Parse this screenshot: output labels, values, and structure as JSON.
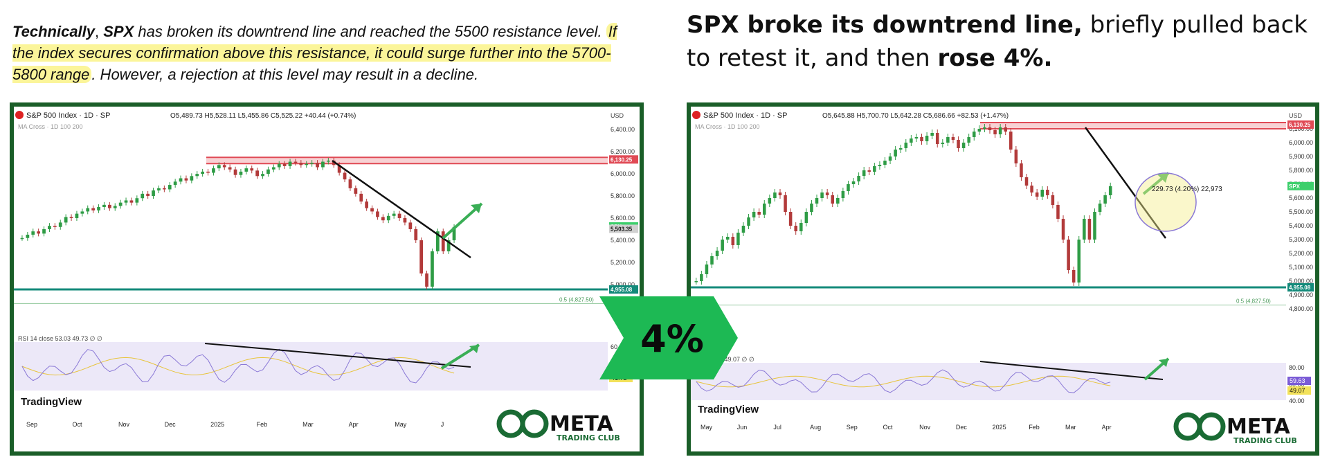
{
  "captions": {
    "left": {
      "w1": "Technically",
      "w2": ", ",
      "w3": "SPX",
      "w4": " has broken its downtrend line and reached the 5500 resistance level. ",
      "w5": "If the index secures confirmation above this resistance, it could surge further into the 5700-5800 range",
      "w6": ". However, a rejection at this level may result in a decline."
    },
    "right": {
      "bold1": "SPX broke its downtrend line,",
      "normal1": " briefly pulled back to retest it, and then ",
      "bold2": "rose 4%."
    }
  },
  "badge": {
    "label": "4%",
    "color": "#1db954"
  },
  "brand": {
    "logo_main": "META",
    "logo_sub": "TRADING CLUB",
    "watermark": "TradingView"
  },
  "colors": {
    "panel_border": "#1a5e28",
    "bull": "#2e9c45",
    "bear": "#b23a3a",
    "resistance": "#e04a55",
    "support": "#138a7a",
    "rsi_band": "#ece8f8",
    "rsi_line": "#8a78d6",
    "rsi_ma": "#e8c43c",
    "arrow": "#3aae56"
  },
  "chart_data": [
    {
      "type": "candlestick",
      "panel": "left",
      "symbol": "S&P 500 Index · 1D · SP",
      "ohlc_header": "O5,489.73 H5,528.11 L5,455.86 C5,525.22 +40.44 (+0.74%)",
      "indicator_label": "MA Cross · 1D 100 200",
      "currency": "USD",
      "y_ticks": [
        "6,400.00",
        "6,200.00",
        "6,000.00",
        "5,800.00",
        "5,600.00",
        "5,400.00",
        "5,200.00",
        "5,000.00"
      ],
      "x_ticks": [
        "Sep",
        "Oct",
        "Nov",
        "Dec",
        "2025",
        "Feb",
        "Mar",
        "Apr",
        "May",
        "J"
      ],
      "price_tags": [
        {
          "label": "6,130.25",
          "value": 6130.25,
          "color": "#e04a55"
        },
        {
          "label": "SPX",
          "value": 5525,
          "color": "#3ccf6b"
        },
        {
          "label": "5,503.35",
          "value": 5503.35,
          "color": "#d0d0d0"
        },
        {
          "label": "4,955.08",
          "value": 4955.08,
          "color": "#138a7a"
        }
      ],
      "fib_label": "0.5 (4,827.50)",
      "fib_value": 4827.5,
      "resistance": 6130.25,
      "support": 4955.08,
      "closes": [
        5420,
        5450,
        5480,
        5460,
        5500,
        5530,
        5520,
        5560,
        5610,
        5600,
        5640,
        5660,
        5690,
        5670,
        5700,
        5720,
        5690,
        5710,
        5740,
        5760,
        5740,
        5780,
        5820,
        5800,
        5850,
        5870,
        5860,
        5900,
        5930,
        5960,
        5940,
        5980,
        6000,
        6020,
        6010,
        6050,
        6080,
        6060,
        6040,
        5990,
        6020,
        6050,
        6030,
        5980,
        6000,
        6040,
        6060,
        6090,
        6070,
        6110,
        6100,
        6080,
        6090,
        6100,
        6060,
        6110,
        6120,
        6080,
        6010,
        5950,
        5870,
        5820,
        5750,
        5690,
        5660,
        5610,
        5580,
        5620,
        5640,
        5600,
        5560,
        5500,
        5400,
        5100,
        4980,
        5300,
        5480,
        5300,
        5400,
        5520
      ],
      "rsi": {
        "label": "RSI 14 close",
        "values_label": "53.03 49.73 ∅ ∅",
        "y_ticks": [
          "60"
        ],
        "value_tag": "41.72"
      }
    },
    {
      "type": "candlestick",
      "panel": "right",
      "symbol": "S&P 500 Index · 1D · SP",
      "ohlc_header": "O5,645.88 H5,700.70 L5,642.28 C5,686.66 +82.53 (+1.47%)",
      "indicator_label": "MA Cross · 1D 100 200",
      "currency": "USD",
      "y_ticks": [
        "6,100.00",
        "6,000.00",
        "5,900.00",
        "5,800.00",
        "5,700.00",
        "5,600.00",
        "5,500.00",
        "5,400.00",
        "5,300.00",
        "5,200.00",
        "5,100.00",
        "5,000.00",
        "4,900.00",
        "4,800.00"
      ],
      "x_ticks": [
        "May",
        "Jun",
        "Jul",
        "Aug",
        "Sep",
        "Oct",
        "Nov",
        "Dec",
        "2025",
        "Feb",
        "Mar",
        "Apr"
      ],
      "price_tags": [
        {
          "label": "6,130.25",
          "value": 6130.25,
          "color": "#e04a55"
        },
        {
          "label": "SPX",
          "value": 5686,
          "color": "#3ccf6b"
        },
        {
          "label": "4,955.08",
          "value": 4955.08,
          "color": "#138a7a"
        }
      ],
      "fib_label": "0.5 (4,827.50)",
      "fib_value": 4827.5,
      "resistance": 6130.25,
      "support": 4955.08,
      "measure_label": "229.73 (4.20%) 22,973",
      "closes": [
        5000,
        5050,
        5120,
        5180,
        5220,
        5300,
        5320,
        5260,
        5350,
        5400,
        5460,
        5500,
        5480,
        5560,
        5600,
        5640,
        5620,
        5500,
        5400,
        5360,
        5420,
        5500,
        5560,
        5600,
        5640,
        5620,
        5560,
        5600,
        5650,
        5700,
        5720,
        5760,
        5800,
        5790,
        5830,
        5840,
        5870,
        5900,
        5950,
        5960,
        6000,
        6030,
        6040,
        6010,
        6050,
        6070,
        5990,
        6000,
        6040,
        6020,
        5960,
        6000,
        6040,
        6080,
        6100,
        6110,
        6090,
        6060,
        6110,
        6080,
        5950,
        5850,
        5750,
        5690,
        5640,
        5610,
        5660,
        5620,
        5550,
        5450,
        5300,
        5080,
        4990,
        5300,
        5450,
        5300,
        5500,
        5560,
        5620,
        5686
      ],
      "rsi": {
        "label": "RSI",
        "values_label": "59.63 49.07 ∅ ∅",
        "y_ticks": [
          "80.00",
          "60.00",
          "40.00"
        ],
        "value_tags": [
          "59.63",
          "49.07"
        ]
      }
    }
  ]
}
